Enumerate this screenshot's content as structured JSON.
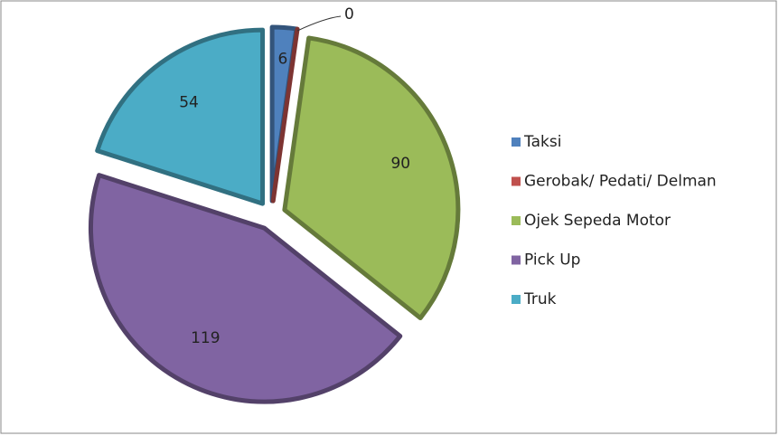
{
  "chart_data": {
    "type": "pie",
    "categories": [
      "Taksi",
      "Gerobak/  Pedati/ Delman",
      "Ojek Sepeda Motor",
      "Pick Up",
      "Truk"
    ],
    "values": [
      6,
      0,
      90,
      119,
      54
    ],
    "colors": [
      "#4f81bd",
      "#c0504d",
      "#9bbb59",
      "#8064a2",
      "#4bacc6"
    ],
    "legend": "right"
  }
}
